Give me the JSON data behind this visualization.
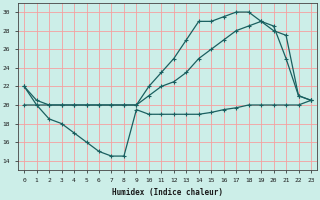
{
  "xlabel": "Humidex (Indice chaleur)",
  "bg_color": "#cceee8",
  "grid_color": "#f5a0a0",
  "line_color": "#1a6060",
  "xlim": [
    -0.5,
    23.5
  ],
  "ylim": [
    13,
    31
  ],
  "xticks": [
    0,
    1,
    2,
    3,
    4,
    5,
    6,
    7,
    8,
    9,
    10,
    11,
    12,
    13,
    14,
    15,
    16,
    17,
    18,
    19,
    20,
    21,
    22,
    23
  ],
  "yticks": [
    14,
    16,
    18,
    20,
    22,
    24,
    26,
    28,
    30
  ],
  "line1_x": [
    0,
    1,
    2,
    3,
    4,
    5,
    6,
    7,
    8,
    9,
    10,
    11,
    12,
    13,
    14,
    15,
    16,
    17,
    18,
    19,
    20,
    21,
    22,
    23
  ],
  "line1_y": [
    22,
    20,
    18.5,
    18,
    17,
    16,
    15,
    14.5,
    14.5,
    19.5,
    19,
    19,
    19,
    19,
    19,
    19.2,
    19.5,
    19.7,
    20,
    20,
    20,
    20,
    20,
    20.5
  ],
  "line2_x": [
    0,
    1,
    2,
    3,
    4,
    5,
    6,
    7,
    8,
    9,
    10,
    11,
    12,
    13,
    14,
    15,
    16,
    17,
    18,
    19,
    20,
    21,
    22,
    23
  ],
  "line2_y": [
    20,
    20,
    20,
    20,
    20,
    20,
    20,
    20,
    20,
    20,
    21,
    22,
    22.5,
    23.5,
    25,
    26,
    27,
    28,
    28.5,
    29,
    28,
    27.5,
    21,
    20.5
  ],
  "line3_x": [
    0,
    1,
    2,
    3,
    4,
    5,
    6,
    7,
    8,
    9,
    10,
    11,
    12,
    13,
    14,
    15,
    16,
    17,
    18,
    19,
    20,
    21,
    22,
    23
  ],
  "line3_y": [
    22,
    20.5,
    20,
    20,
    20,
    20,
    20,
    20,
    20,
    20,
    22,
    23.5,
    25,
    27,
    29,
    29,
    29.5,
    30,
    30,
    29,
    28.5,
    25,
    21,
    20.5
  ]
}
